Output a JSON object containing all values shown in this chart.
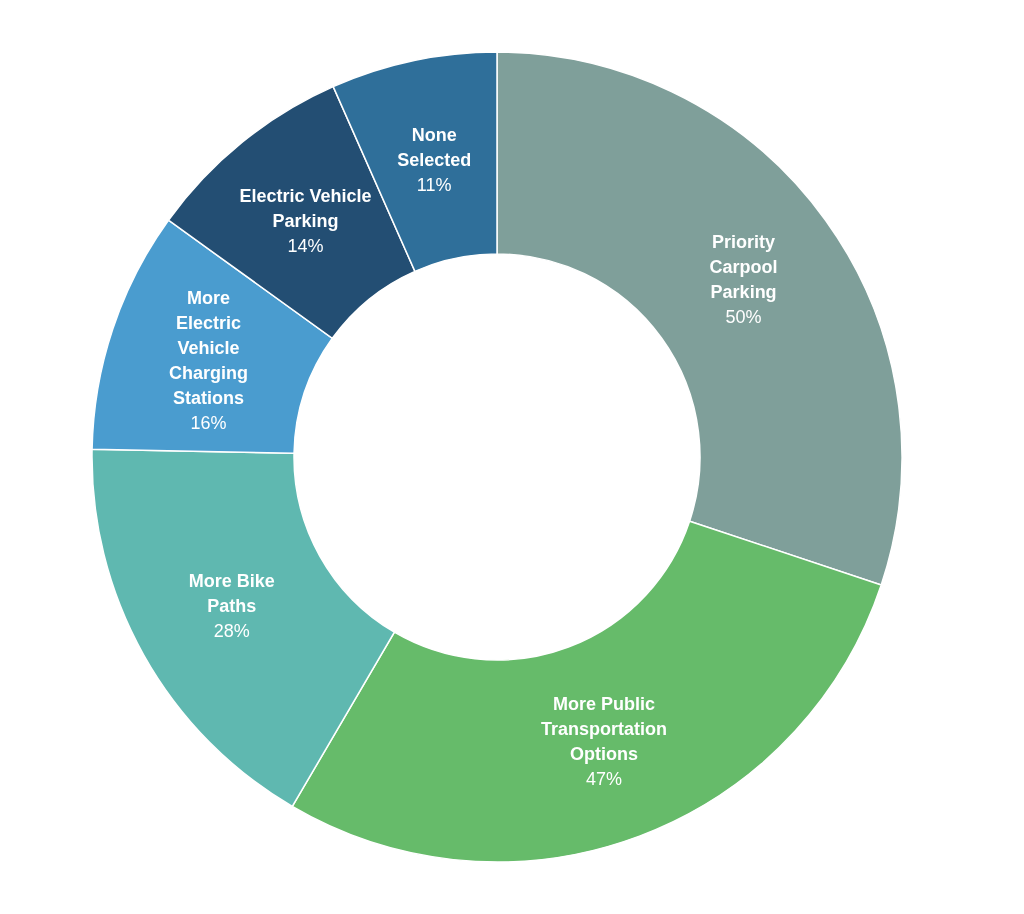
{
  "chart_data": {
    "type": "donut",
    "categories": [
      "Priority Carpool Parking",
      "More Public Transportation Options",
      "More Bike Paths",
      "More Electric Vehicle Charging Stations",
      "Electric Vehicle Parking",
      "None Selected"
    ],
    "values": [
      50,
      47,
      28,
      16,
      14,
      11
    ],
    "value_labels": [
      "50%",
      "47%",
      "28%",
      "16%",
      "14%",
      "11%"
    ],
    "colors": [
      "#7f9f9a",
      "#66bb6a",
      "#5fb8b0",
      "#4a9ccf",
      "#234e73",
      "#2f6f9a"
    ]
  }
}
